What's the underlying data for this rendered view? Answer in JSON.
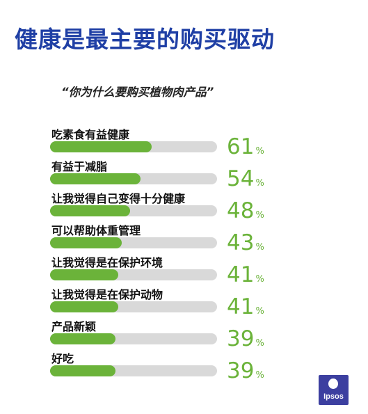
{
  "title": "健康是最主要的购买驱动",
  "question": "“你为什么要购买植物肉产品”",
  "logo_text": "Ipsos",
  "colors": {
    "title": "#1f3fa5",
    "bar": "#6bb33a",
    "track": "#d9d9d9",
    "logo": "#3c3fa0"
  },
  "chart_data": {
    "type": "bar",
    "orientation": "horizontal",
    "unit": "%",
    "ylim": [
      0,
      100
    ],
    "categories": [
      "吃素食有益健康",
      "有益于减脂",
      "让我觉得自己变得十分健康",
      "可以帮助体重管理",
      "让我觉得是在保护环境",
      "让我觉得是在保护动物",
      "产品新颖",
      "好吃"
    ],
    "values": [
      61,
      54,
      48,
      43,
      41,
      41,
      39,
      39
    ]
  }
}
